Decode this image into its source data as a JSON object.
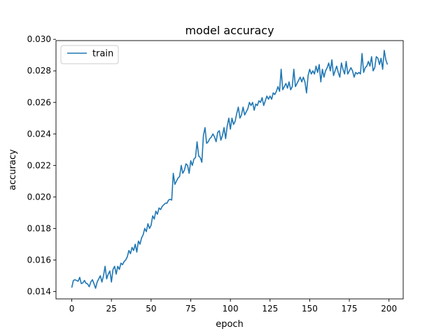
{
  "colors": {
    "series": "#1f77b4",
    "axes": "#000000",
    "background": "#ffffff",
    "legend_border": "#cccccc"
  },
  "chart_data": {
    "type": "line",
    "title": "model accuracy",
    "xlabel": "epoch",
    "ylabel": "accuracy",
    "xlim": [
      -9.95,
      208.95
    ],
    "ylim": [
      0.01353,
      0.02992
    ],
    "grid": false,
    "legend": {
      "position": "top-left",
      "entries": [
        "train"
      ]
    },
    "xticks": [
      0,
      25,
      50,
      75,
      100,
      125,
      150,
      175,
      200
    ],
    "xtick_labels": [
      "0",
      "25",
      "50",
      "75",
      "100",
      "125",
      "150",
      "175",
      "200"
    ],
    "yticks": [
      0.014,
      0.016,
      0.018,
      0.02,
      0.022,
      0.024,
      0.026,
      0.028,
      0.03
    ],
    "ytick_labels": [
      "0.014",
      "0.016",
      "0.018",
      "0.020",
      "0.022",
      "0.024",
      "0.026",
      "0.028",
      "0.030"
    ],
    "series": [
      {
        "name": "train",
        "x_start": 0,
        "x_step": 1,
        "values": [
          0.01425,
          0.0147,
          0.01475,
          0.0147,
          0.01465,
          0.0149,
          0.0145,
          0.01455,
          0.0147,
          0.01452,
          0.01448,
          0.0143,
          0.0146,
          0.01475,
          0.0145,
          0.0142,
          0.0146,
          0.0148,
          0.015,
          0.0146,
          0.015,
          0.0156,
          0.0148,
          0.0151,
          0.0153,
          0.0146,
          0.0154,
          0.0156,
          0.0151,
          0.0156,
          0.0154,
          0.0158,
          0.0157,
          0.0159,
          0.016,
          0.0162,
          0.0166,
          0.0164,
          0.0168,
          0.0166,
          0.017,
          0.0165,
          0.0172,
          0.017,
          0.0174,
          0.0176,
          0.018,
          0.0178,
          0.0183,
          0.018,
          0.0182,
          0.0188,
          0.0186,
          0.0191,
          0.0189,
          0.0193,
          0.0192,
          0.0194,
          0.0195,
          0.0196,
          0.0196,
          0.0198,
          0.01985,
          0.0198,
          0.0215,
          0.0208,
          0.021,
          0.0212,
          0.0213,
          0.022,
          0.0215,
          0.0217,
          0.0221,
          0.022,
          0.0215,
          0.0223,
          0.022,
          0.0224,
          0.0225,
          0.0235,
          0.0226,
          0.0225,
          0.0222,
          0.0239,
          0.0244,
          0.0234,
          0.0235,
          0.0237,
          0.0238,
          0.024,
          0.0238,
          0.0235,
          0.0241,
          0.0242,
          0.0236,
          0.0239,
          0.0244,
          0.0237,
          0.0245,
          0.025,
          0.0243,
          0.025,
          0.0246,
          0.0248,
          0.0253,
          0.0257,
          0.025,
          0.0252,
          0.0257,
          0.0252,
          0.0254,
          0.0256,
          0.026,
          0.0258,
          0.026,
          0.0255,
          0.0259,
          0.0258,
          0.0261,
          0.026,
          0.0263,
          0.0258,
          0.0261,
          0.0264,
          0.0262,
          0.0264,
          0.0262,
          0.0266,
          0.0265,
          0.0267,
          0.027,
          0.0267,
          0.0281,
          0.0268,
          0.027,
          0.0272,
          0.0269,
          0.0273,
          0.0268,
          0.027,
          0.0281,
          0.027,
          0.0272,
          0.0274,
          0.0276,
          0.0273,
          0.0276,
          0.0273,
          0.0266,
          0.0277,
          0.0281,
          0.0278,
          0.028,
          0.0278,
          0.0283,
          0.0279,
          0.0284,
          0.0273,
          0.0281,
          0.0276,
          0.028,
          0.0282,
          0.0285,
          0.028,
          0.0287,
          0.0277,
          0.028,
          0.0283,
          0.0279,
          0.0276,
          0.0285,
          0.0281,
          0.0278,
          0.0286,
          0.0278,
          0.028,
          0.0282,
          0.028,
          0.0276,
          0.0279,
          0.0278,
          0.0279,
          0.0278,
          0.0291,
          0.0279,
          0.0282,
          0.0283,
          0.0286,
          0.0283,
          0.0289,
          0.028,
          0.0282,
          0.0289,
          0.0288,
          0.0284,
          0.0288,
          0.0281,
          0.0293,
          0.0287,
          0.0284
        ]
      }
    ]
  }
}
